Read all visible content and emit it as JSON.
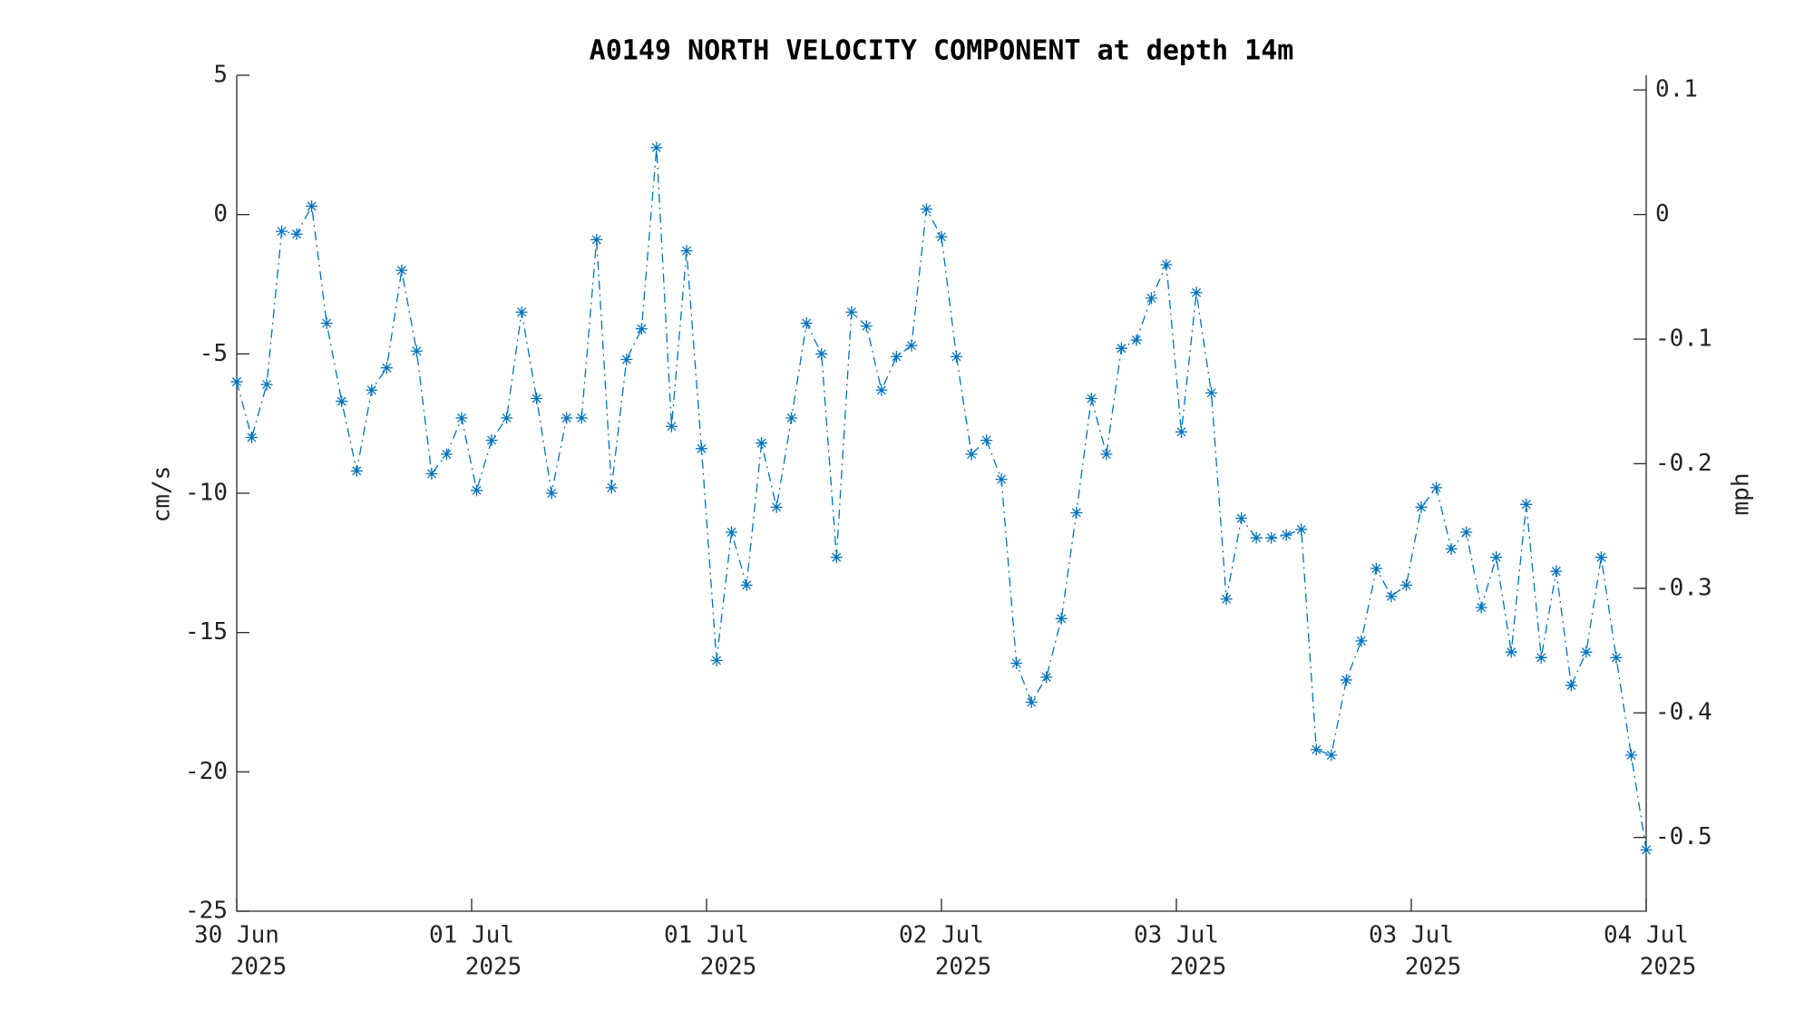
{
  "chart_data": {
    "type": "line",
    "title": "A0149 NORTH VELOCITY COMPONENT at depth 14m",
    "ylabel": "cm/s",
    "y2label": "mph",
    "xtick_labels": [
      [
        "30 Jun",
        "2025"
      ],
      [
        "01 Jul",
        "2025"
      ],
      [
        "01 Jul",
        "2025"
      ],
      [
        "02 Jul",
        "2025"
      ],
      [
        "03 Jul",
        "2025"
      ],
      [
        "03 Jul",
        "2025"
      ],
      [
        "04 Jul",
        "2025"
      ]
    ],
    "series": [
      {
        "color": "#0072bd",
        "marker": "asterisk",
        "linestyle": "dashdot",
        "values": [
          -6.0,
          -8.0,
          -6.1,
          -0.6,
          -0.7,
          0.3,
          -3.9,
          -6.7,
          -9.2,
          -6.3,
          -5.5,
          -2.0,
          -4.9,
          -9.3,
          -8.6,
          -7.3,
          -9.9,
          -8.1,
          -7.3,
          -3.5,
          -6.6,
          -10.0,
          -7.3,
          -7.3,
          -0.9,
          -9.8,
          -5.2,
          -4.1,
          2.4,
          -7.6,
          -1.3,
          -8.4,
          -16.0,
          -11.4,
          -13.3,
          -8.2,
          -10.5,
          -7.3,
          -3.9,
          -5.0,
          -12.3,
          -3.5,
          -4.0,
          -6.3,
          -5.1,
          -4.7,
          0.2,
          -0.8,
          -5.1,
          -8.6,
          -8.1,
          -9.5,
          -16.1,
          -17.5,
          -16.6,
          -14.5,
          -10.7,
          -6.6,
          -8.6,
          -4.8,
          -4.5,
          -3.0,
          -1.8,
          -7.8,
          -2.8,
          -6.4,
          -13.8,
          -10.9,
          -11.6,
          -11.6,
          -11.5,
          -11.3,
          -19.2,
          -19.4,
          -16.7,
          -15.3,
          -12.7,
          -13.7,
          -13.3,
          -10.5,
          -9.8,
          -12.0,
          -11.4,
          -14.1,
          -12.3,
          -15.7,
          -10.4,
          -15.9,
          -12.8,
          -16.9,
          -15.7,
          -12.3,
          -15.9,
          -19.4,
          -22.8
        ]
      }
    ],
    "ylim": [
      -25,
      5
    ],
    "yticks": [
      -25,
      -20,
      -15,
      -10,
      -5,
      0,
      5
    ],
    "y2lim": [
      -0.5592,
      0.1118
    ],
    "y2ticks": [
      -0.5,
      -0.4,
      -0.3,
      -0.2,
      -0.1,
      0,
      0.1
    ]
  }
}
